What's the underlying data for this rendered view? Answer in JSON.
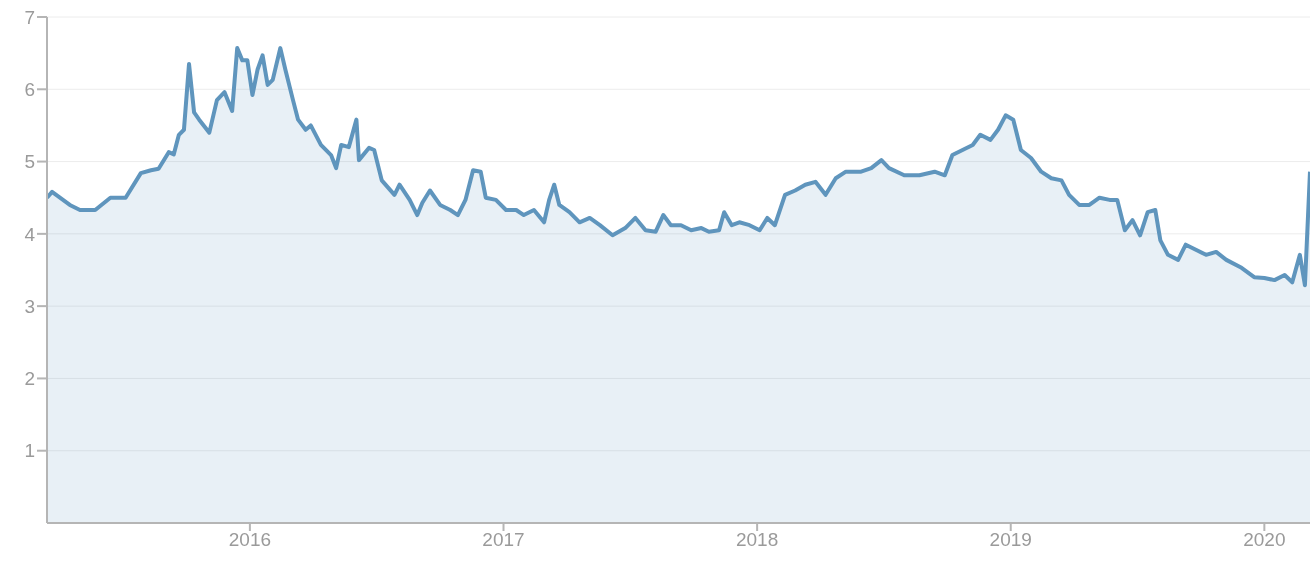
{
  "chart_data": {
    "type": "area",
    "x": [
      2015.2,
      2015.22,
      2015.29,
      2015.33,
      2015.39,
      2015.45,
      2015.51,
      2015.57,
      2015.61,
      2015.64,
      2015.68,
      2015.7,
      2015.72,
      2015.74,
      2015.76,
      2015.78,
      2015.8,
      2015.84,
      2015.87,
      2015.9,
      2015.93,
      2015.95,
      2015.97,
      2015.99,
      2016.01,
      2016.03,
      2016.05,
      2016.07,
      2016.09,
      2016.12,
      2016.14,
      2016.17,
      2016.19,
      2016.22,
      2016.24,
      2016.28,
      2016.32,
      2016.34,
      2016.36,
      2016.39,
      2016.42,
      2016.43,
      2016.47,
      2016.49,
      2016.52,
      2016.57,
      2016.59,
      2016.63,
      2016.66,
      2016.68,
      2016.71,
      2016.75,
      2016.79,
      2016.82,
      2016.85,
      2016.88,
      2016.91,
      2016.93,
      2016.97,
      2017.01,
      2017.05,
      2017.08,
      2017.12,
      2017.16,
      2017.18,
      2017.2,
      2017.22,
      2017.26,
      2017.3,
      2017.34,
      2017.38,
      2017.43,
      2017.48,
      2017.52,
      2017.56,
      2017.6,
      2017.63,
      2017.66,
      2017.7,
      2017.74,
      2017.78,
      2017.81,
      2017.85,
      2017.87,
      2017.9,
      2017.93,
      2017.97,
      2018.01,
      2018.04,
      2018.07,
      2018.11,
      2018.15,
      2018.19,
      2018.23,
      2018.27,
      2018.31,
      2018.35,
      2018.41,
      2018.45,
      2018.49,
      2018.52,
      2018.58,
      2018.64,
      2018.7,
      2018.74,
      2018.77,
      2018.81,
      2018.85,
      2018.88,
      2018.92,
      2018.95,
      2018.98,
      2019.01,
      2019.04,
      2019.08,
      2019.12,
      2019.16,
      2019.2,
      2019.23,
      2019.27,
      2019.31,
      2019.35,
      2019.39,
      2019.42,
      2019.45,
      2019.48,
      2019.51,
      2019.54,
      2019.57,
      2019.59,
      2019.62,
      2019.66,
      2019.69,
      2019.73,
      2019.77,
      2019.81,
      2019.85,
      2019.91,
      2019.96,
      2020.0,
      2020.04,
      2020.08,
      2020.11,
      2020.14,
      2020.16,
      2020.18
    ],
    "series": [
      {
        "color": "#5f95bd",
        "values": [
          4.5,
          4.58,
          4.4,
          4.33,
          4.33,
          4.5,
          4.5,
          4.84,
          4.88,
          4.9,
          5.13,
          5.1,
          5.37,
          5.44,
          6.35,
          5.68,
          5.58,
          5.4,
          5.85,
          5.96,
          5.7,
          6.57,
          6.4,
          6.4,
          5.92,
          6.27,
          6.47,
          6.06,
          6.13,
          6.57,
          6.27,
          5.85,
          5.58,
          5.44,
          5.5,
          5.23,
          5.09,
          4.91,
          5.23,
          5.2,
          5.58,
          5.02,
          5.19,
          5.16,
          4.74,
          4.54,
          4.68,
          4.47,
          4.26,
          4.43,
          4.6,
          4.4,
          4.33,
          4.26,
          4.47,
          4.88,
          4.86,
          4.5,
          4.47,
          4.33,
          4.33,
          4.26,
          4.33,
          4.16,
          4.47,
          4.68,
          4.4,
          4.3,
          4.16,
          4.22,
          4.12,
          3.98,
          4.08,
          4.22,
          4.05,
          4.03,
          4.26,
          4.12,
          4.12,
          4.05,
          4.08,
          4.03,
          4.05,
          4.3,
          4.12,
          4.16,
          4.12,
          4.05,
          4.22,
          4.12,
          4.54,
          4.6,
          4.68,
          4.72,
          4.54,
          4.77,
          4.86,
          4.86,
          4.91,
          5.02,
          4.91,
          4.81,
          4.81,
          4.86,
          4.81,
          5.09,
          5.16,
          5.23,
          5.37,
          5.3,
          5.44,
          5.64,
          5.58,
          5.16,
          5.05,
          4.86,
          4.77,
          4.74,
          4.54,
          4.4,
          4.4,
          4.5,
          4.47,
          4.47,
          4.05,
          4.19,
          3.98,
          4.3,
          4.33,
          3.91,
          3.71,
          3.64,
          3.85,
          3.78,
          3.71,
          3.75,
          3.64,
          3.53,
          3.4,
          3.39,
          3.36,
          3.43,
          3.33,
          3.71,
          3.29,
          4.86
        ]
      }
    ],
    "xlim": [
      2015.2,
      2020.18
    ],
    "xticks": [
      2016,
      2017,
      2018,
      2019,
      2020
    ],
    "ylim": [
      0,
      7
    ],
    "yticks": [
      1,
      2,
      3,
      4,
      5,
      6,
      7
    ],
    "grid": "y"
  }
}
